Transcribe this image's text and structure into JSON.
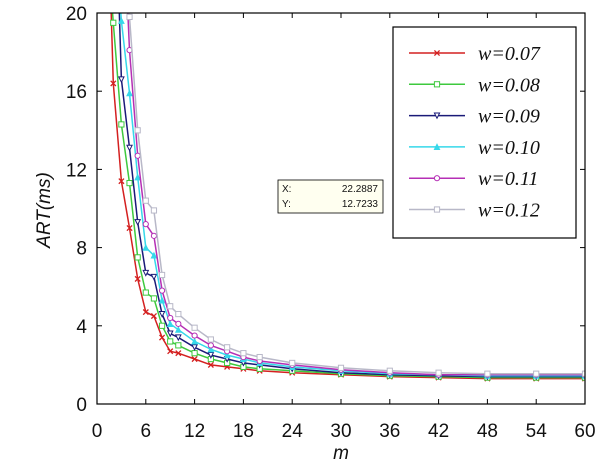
{
  "chart_data": {
    "type": "line",
    "xlabel": "m",
    "ylabel": "ART(ms)",
    "xlim": [
      0,
      60
    ],
    "ylim": [
      0,
      20
    ],
    "xticks": [
      0,
      6,
      12,
      18,
      24,
      30,
      36,
      42,
      48,
      54,
      60
    ],
    "yticks": [
      0,
      4,
      8,
      12,
      16,
      20
    ],
    "legend_position": "top-right",
    "grid": false,
    "series": [
      {
        "name": "w=0.07",
        "color": "#d42020",
        "marker": "x",
        "x": [
          2,
          3,
          4,
          5,
          6,
          7,
          8,
          9,
          10,
          12,
          14,
          16,
          18,
          20,
          24,
          30,
          36,
          42,
          48,
          54,
          60
        ],
        "y": [
          16.4,
          11.4,
          9.0,
          6.4,
          4.7,
          4.5,
          3.4,
          2.7,
          2.6,
          2.3,
          2.0,
          1.9,
          1.8,
          1.7,
          1.6,
          1.5,
          1.4,
          1.35,
          1.3,
          1.3,
          1.3
        ]
      },
      {
        "name": "w=0.08",
        "color": "#3ec93e",
        "marker": "square",
        "x": [
          2,
          3,
          4,
          5,
          6,
          7,
          8,
          9,
          10,
          12,
          14,
          16,
          18,
          20,
          24,
          30,
          36,
          42,
          48,
          54,
          60
        ],
        "y": [
          19.5,
          14.3,
          11.3,
          7.5,
          5.7,
          5.4,
          4.0,
          3.2,
          3.0,
          2.6,
          2.3,
          2.1,
          1.9,
          1.8,
          1.7,
          1.55,
          1.45,
          1.4,
          1.35,
          1.35,
          1.35
        ]
      },
      {
        "name": "w=0.09",
        "color": "#1a1a78",
        "marker": "triangle-down",
        "x": [
          3,
          4,
          5,
          6,
          7,
          8,
          9,
          10,
          12,
          14,
          16,
          18,
          20,
          24,
          30,
          36,
          42,
          48,
          54,
          60
        ],
        "y": [
          16.6,
          13.1,
          9.3,
          6.7,
          6.5,
          4.6,
          3.6,
          3.4,
          2.9,
          2.5,
          2.3,
          2.1,
          2.0,
          1.8,
          1.6,
          1.5,
          1.45,
          1.4,
          1.4,
          1.4
        ]
      },
      {
        "name": "w=0.10",
        "color": "#36d8ea",
        "marker": "triangle-up",
        "x": [
          3,
          4,
          5,
          6,
          7,
          8,
          9,
          10,
          12,
          14,
          16,
          18,
          20,
          24,
          30,
          36,
          42,
          48,
          54,
          60
        ],
        "y": [
          19.6,
          15.9,
          11.6,
          8.0,
          7.6,
          5.3,
          4.1,
          3.8,
          3.2,
          2.8,
          2.5,
          2.3,
          2.1,
          1.9,
          1.7,
          1.55,
          1.5,
          1.45,
          1.45,
          1.45
        ]
      },
      {
        "name": "w=0.11",
        "color": "#b52fb5",
        "marker": "circle",
        "x": [
          4,
          5,
          6,
          7,
          8,
          9,
          10,
          12,
          14,
          16,
          18,
          20,
          24,
          30,
          36,
          42,
          48,
          54,
          60
        ],
        "y": [
          18.1,
          12.7,
          9.2,
          8.6,
          5.8,
          4.4,
          4.1,
          3.5,
          3.0,
          2.7,
          2.4,
          2.2,
          2.0,
          1.75,
          1.6,
          1.5,
          1.5,
          1.5,
          1.5
        ]
      },
      {
        "name": "w=0.12",
        "color": "#b8b8c8",
        "marker": "open-square",
        "x": [
          4,
          5,
          6,
          7,
          8,
          9,
          10,
          12,
          14,
          16,
          18,
          20,
          24,
          30,
          36,
          42,
          48,
          54,
          60
        ],
        "y": [
          19.8,
          14.0,
          10.4,
          9.9,
          6.6,
          5.0,
          4.6,
          3.9,
          3.3,
          2.9,
          2.6,
          2.4,
          2.1,
          1.85,
          1.7,
          1.6,
          1.55,
          1.55,
          1.55
        ]
      }
    ],
    "datatip": {
      "x_label": "X:",
      "x_value": "22.2887",
      "y_label": "Y:",
      "y_value": "12.7233"
    }
  }
}
